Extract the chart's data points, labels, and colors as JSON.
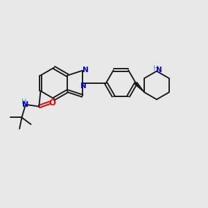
{
  "bg": "#e8e8e8",
  "bc": "#1a1a1a",
  "nc": "#0000ee",
  "oc": "#ee0000",
  "nhc": "#4a9a9a",
  "lw": 1.4,
  "lw_thin": 1.2,
  "figsize": [
    3.0,
    3.0
  ],
  "dpi": 100,
  "xlim": [
    0,
    10
  ],
  "ylim": [
    0,
    10
  ]
}
